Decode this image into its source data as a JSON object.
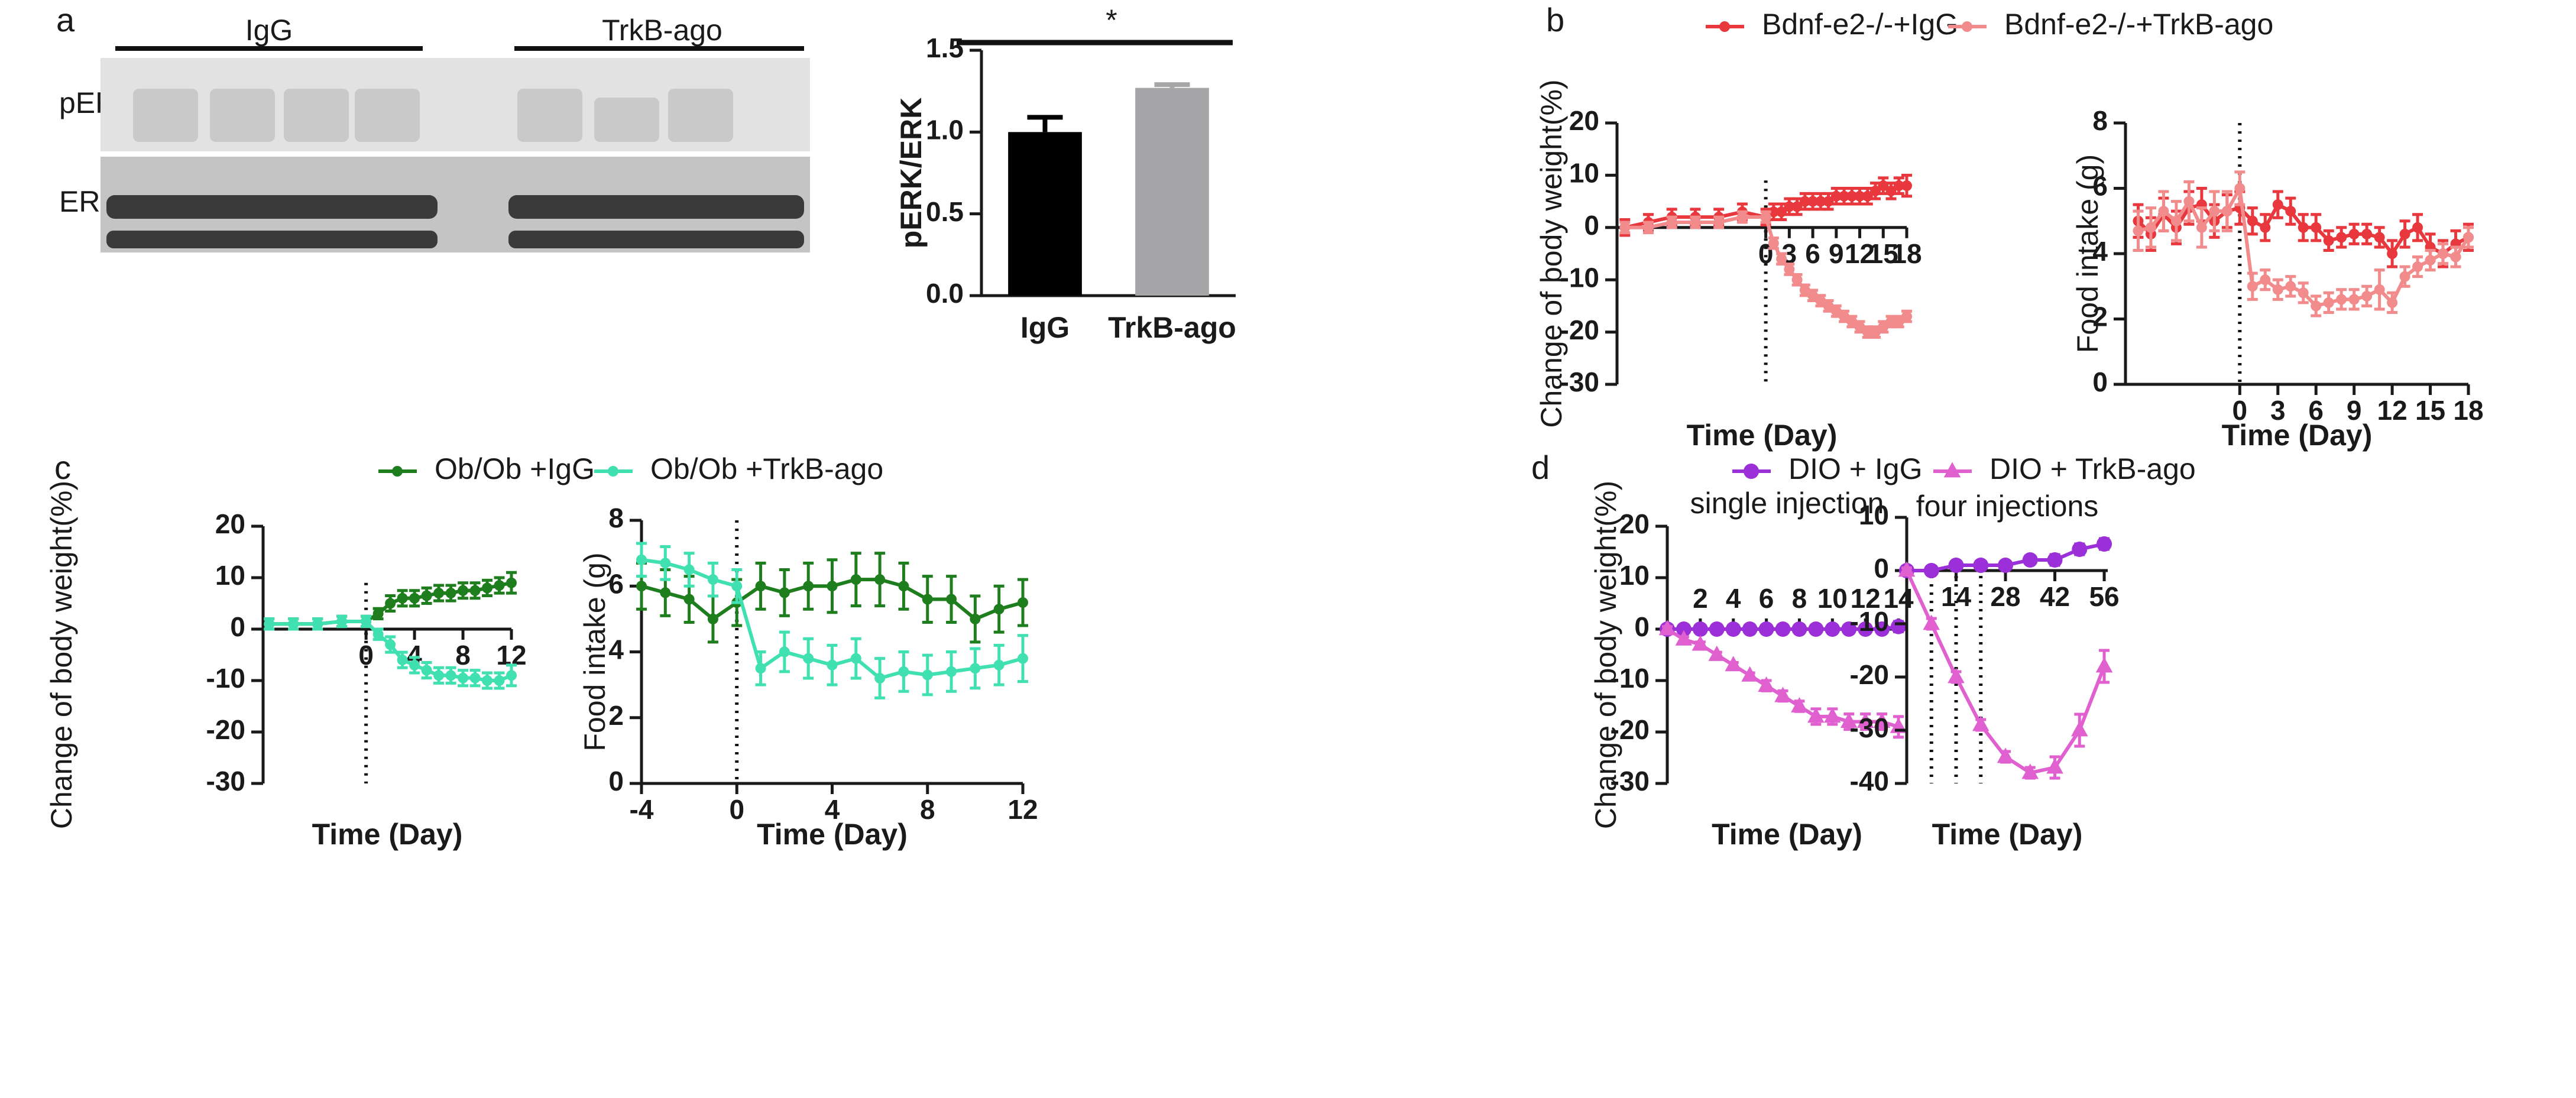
{
  "panels": [
    "a",
    "b",
    "c",
    "d"
  ],
  "blot": {
    "lanes": [
      "IgG",
      "TrkB-ago"
    ],
    "rows": [
      "pERK",
      "ERK"
    ]
  },
  "chart_data": [
    {
      "type": "bar",
      "categories": [
        "IgG",
        "TrkB-ago"
      ],
      "values": [
        1.0,
        1.27
      ],
      "errors": [
        0.09,
        0.02
      ],
      "colors": [
        "#000000",
        "#a6a6a8"
      ],
      "ylabel": "pERK/ERK",
      "ylim": [
        0,
        1.5
      ],
      "yticks": [
        {
          "value": 0,
          "label": "0.0"
        },
        0.5,
        {
          "value": 1,
          "label": "1.0"
        },
        1.5
      ],
      "annotation": "*"
    },
    {
      "type": "line",
      "ylabel": "Change of body weight(%)",
      "xlabel": "Time (Day)",
      "x": [
        -18,
        -15,
        -12,
        -9,
        -6,
        -3,
        0,
        1,
        2,
        3,
        4,
        5,
        6,
        7,
        8,
        9,
        10,
        11,
        12,
        13,
        14,
        15,
        16,
        17,
        18
      ],
      "xlim": [
        -19,
        18
      ],
      "ylim": [
        -30,
        20
      ],
      "xticks": [
        0,
        3,
        6,
        9,
        12,
        15,
        18
      ],
      "yticks": [
        20,
        10,
        0,
        -10,
        -20,
        -30
      ],
      "vlines": [
        0
      ],
      "series": [
        {
          "name": "Bdnf-e2-/-+IgG",
          "color": "#e8383d",
          "marker": "circle",
          "values": [
            0,
            1,
            2,
            2,
            2,
            3,
            2,
            3,
            3,
            4,
            4,
            5,
            5,
            5,
            5,
            6,
            6,
            6,
            6,
            6,
            7,
            8,
            7,
            8,
            8
          ],
          "errors": [
            1.5,
            1.5,
            1.5,
            1.5,
            1.5,
            1.5,
            1.5,
            1.5,
            1.5,
            1.5,
            1.5,
            1.5,
            1.5,
            1.5,
            1.5,
            1.5,
            1.5,
            1.5,
            1.5,
            1.5,
            1.5,
            1.5,
            1.5,
            1.5,
            2
          ]
        },
        {
          "name": "Bdnf-e2-/-+TrkB-ago",
          "color": "#f28b8b",
          "marker": "circle",
          "values": [
            0,
            0,
            1,
            1,
            1,
            2,
            2,
            -3,
            -6,
            -8,
            -10,
            -12,
            -13,
            -14,
            -15,
            -16,
            -17,
            -18,
            -19,
            -20,
            -20,
            -19,
            -18,
            -18,
            -17
          ],
          "errors": [
            1,
            1,
            1,
            1,
            1,
            1,
            1,
            1,
            1,
            1,
            1,
            1,
            1,
            1,
            1,
            1,
            1,
            1,
            1,
            1,
            1,
            1,
            1,
            1,
            1
          ]
        }
      ]
    },
    {
      "type": "line",
      "ylabel": "Food intake (g)",
      "xlabel": "Time (Day)",
      "x": [
        -8,
        -7,
        -6,
        -5,
        -4,
        -3,
        -2,
        -1,
        0,
        1,
        2,
        3,
        4,
        5,
        6,
        7,
        8,
        9,
        10,
        11,
        12,
        13,
        14,
        15,
        16,
        17,
        18
      ],
      "xlim": [
        -9,
        18
      ],
      "ylim": [
        0,
        8
      ],
      "xticks": [
        0,
        3,
        6,
        9,
        12,
        15,
        18
      ],
      "yticks": [
        0,
        2,
        4,
        6,
        8
      ],
      "vlines": [
        0
      ],
      "series": [
        {
          "color": "#e8383d",
          "marker": "circle",
          "values": [
            5,
            4.6,
            5.2,
            4.8,
            5.4,
            5.5,
            5.0,
            5.3,
            5.4,
            5.0,
            4.8,
            5.5,
            5.3,
            4.8,
            4.8,
            4.4,
            4.5,
            4.6,
            4.6,
            4.5,
            4.0,
            4.6,
            4.8,
            4.2,
            4.0,
            4.3,
            4.5
          ],
          "errors": [
            0.5,
            0.5,
            0.5,
            0.5,
            0.5,
            0.5,
            0.5,
            0.5,
            0.5,
            0.4,
            0.4,
            0.4,
            0.4,
            0.4,
            0.4,
            0.3,
            0.3,
            0.3,
            0.3,
            0.3,
            0.4,
            0.4,
            0.4,
            0.4,
            0.4,
            0.4,
            0.4
          ]
        },
        {
          "color": "#f28b8b",
          "marker": "circle",
          "values": [
            4.7,
            4.8,
            5.3,
            5.0,
            5.6,
            4.8,
            5.3,
            5.3,
            6.0,
            3.0,
            3.2,
            2.9,
            3.0,
            2.8,
            2.4,
            2.5,
            2.6,
            2.6,
            2.7,
            2.9,
            2.5,
            3.3,
            3.6,
            3.8,
            4.0,
            3.9,
            4.5
          ],
          "errors": [
            0.6,
            0.6,
            0.6,
            0.6,
            0.6,
            0.6,
            0.6,
            0.6,
            0.5,
            0.4,
            0.3,
            0.3,
            0.3,
            0.3,
            0.3,
            0.3,
            0.3,
            0.3,
            0.3,
            0.6,
            0.3,
            0.3,
            0.3,
            0.3,
            0.3,
            0.3,
            0.3
          ]
        }
      ]
    },
    {
      "type": "line",
      "ylabel": "Change of body weight(%)",
      "xlabel": "Time (Day)",
      "x": [
        -8,
        -6,
        -4,
        -2,
        0,
        1,
        2,
        3,
        4,
        5,
        6,
        7,
        8,
        9,
        10,
        11,
        12
      ],
      "xlim": [
        -8.5,
        12
      ],
      "ylim": [
        -30,
        20
      ],
      "xticks": [
        0,
        4,
        8,
        12
      ],
      "yticks": [
        20,
        10,
        0,
        -10,
        -20,
        -30
      ],
      "vlines": [
        0
      ],
      "series": [
        {
          "name": "Ob/Ob +IgG",
          "color": "#1e7e1e",
          "marker": "circle",
          "values": [
            1,
            1,
            1,
            1.5,
            1.5,
            3,
            5,
            6,
            6,
            6.5,
            7,
            7,
            7.5,
            7.5,
            8,
            8.5,
            9
          ],
          "errors": [
            1,
            1,
            1,
            1,
            1,
            1,
            1.5,
            1.5,
            1.5,
            1.5,
            1.5,
            1.5,
            1.5,
            1.5,
            1.5,
            1.5,
            2
          ]
        },
        {
          "name": "Ob/Ob +TrkB-ago",
          "color": "#40e0b0",
          "marker": "circle",
          "values": [
            1,
            1,
            1,
            1.5,
            1.5,
            -1,
            -3,
            -6,
            -7,
            -8,
            -9,
            -9,
            -9.5,
            -9.5,
            -10,
            -10,
            -9
          ],
          "errors": [
            1,
            1,
            1,
            1,
            1,
            1,
            1.5,
            1.5,
            1.5,
            1.5,
            1.5,
            1.5,
            1.5,
            1.5,
            1.5,
            1.5,
            2
          ]
        }
      ]
    },
    {
      "type": "line",
      "ylabel": "Food intake (g)",
      "xlabel": "Time (Day)",
      "x": [
        -4,
        -3,
        -2,
        -1,
        0,
        1,
        2,
        3,
        4,
        5,
        6,
        7,
        8,
        9,
        10,
        11,
        12
      ],
      "xlim": [
        -4,
        12
      ],
      "ylim": [
        0,
        8
      ],
      "xticks": [
        -4,
        0,
        4,
        8,
        12
      ],
      "yticks": [
        0,
        2,
        4,
        6,
        8
      ],
      "vlines": [
        0
      ],
      "series": [
        {
          "color": "#1e7e1e",
          "marker": "circle",
          "values": [
            6,
            5.8,
            5.6,
            5.0,
            5.5,
            6,
            5.8,
            6,
            6,
            6.2,
            6.2,
            6,
            5.6,
            5.6,
            5.0,
            5.3,
            5.5
          ],
          "errors": [
            0.7,
            0.7,
            0.7,
            0.7,
            0.7,
            0.7,
            0.7,
            0.7,
            0.8,
            0.8,
            0.8,
            0.7,
            0.7,
            0.7,
            0.7,
            0.7,
            0.7
          ]
        },
        {
          "color": "#40e0b0",
          "marker": "circle",
          "values": [
            6.8,
            6.7,
            6.5,
            6.2,
            6.0,
            3.5,
            4,
            3.8,
            3.6,
            3.8,
            3.2,
            3.4,
            3.3,
            3.4,
            3.5,
            3.6,
            3.8
          ],
          "errors": [
            0.5,
            0.5,
            0.5,
            0.5,
            0.5,
            0.5,
            0.6,
            0.6,
            0.6,
            0.6,
            0.6,
            0.6,
            0.6,
            0.6,
            0.6,
            0.6,
            0.7
          ]
        }
      ]
    },
    {
      "type": "line",
      "subtitle": "single injection",
      "ylabel": "Change of body weight(%)",
      "xlabel": "Time (Day)",
      "x": [
        0,
        1,
        2,
        3,
        4,
        5,
        6,
        7,
        8,
        9,
        10,
        11,
        12,
        13,
        14
      ],
      "xlim": [
        0,
        14.5
      ],
      "ylim": [
        -30,
        20
      ],
      "xticks": [
        2,
        4,
        6,
        8,
        10,
        12,
        14
      ],
      "yticks": [
        20,
        10,
        0,
        -10,
        -20,
        -30
      ],
      "series": [
        {
          "name": "DIO + IgG",
          "color": "#9b30d9",
          "marker": "circle",
          "values": [
            0,
            0,
            0,
            0,
            0,
            0,
            0,
            0,
            0,
            0,
            0,
            0,
            0,
            0,
            0.5
          ],
          "errors": [
            0.5,
            0.5,
            0.5,
            0.5,
            0.5,
            0.5,
            0.5,
            0.5,
            0.5,
            0.5,
            0.5,
            0.5,
            0.5,
            0.5,
            1
          ]
        },
        {
          "name": "DIO + TrkB-ago",
          "color": "#e060d0",
          "marker": "triangle",
          "values": [
            0,
            -2,
            -3,
            -5,
            -7,
            -9,
            -11,
            -13,
            -15,
            -17,
            -17,
            -18,
            -18,
            -18,
            -19
          ],
          "errors": [
            0.5,
            0.5,
            0.5,
            0.5,
            0.5,
            0.5,
            1,
            1,
            1,
            1.5,
            1.5,
            1.5,
            1.5,
            1.5,
            2
          ]
        }
      ]
    },
    {
      "type": "line",
      "subtitle": "four injections",
      "xlabel": "Time (Day)",
      "x": [
        0,
        7,
        14,
        21,
        28,
        35,
        42,
        49,
        56
      ],
      "xlim": [
        0,
        57
      ],
      "ylim": [
        -40,
        10
      ],
      "xticks": [
        14,
        28,
        42,
        56
      ],
      "yticks": [
        10,
        0,
        -10,
        -20,
        -30,
        -40
      ],
      "vlines": [
        7,
        14,
        21
      ],
      "series": [
        {
          "color": "#9b30d9",
          "marker": "circle",
          "values": [
            0,
            0,
            1,
            1,
            1,
            2,
            2,
            4,
            5
          ],
          "errors": [
            0.5,
            0.5,
            0.5,
            0.5,
            0.5,
            0.5,
            1,
            1,
            1
          ]
        },
        {
          "color": "#e060d0",
          "marker": "triangle",
          "values": [
            0,
            -10,
            -20,
            -29,
            -35,
            -38,
            -37,
            -30,
            -18
          ],
          "errors": [
            0.5,
            1,
            1,
            1,
            1,
            1,
            2,
            3,
            3
          ]
        }
      ]
    }
  ]
}
